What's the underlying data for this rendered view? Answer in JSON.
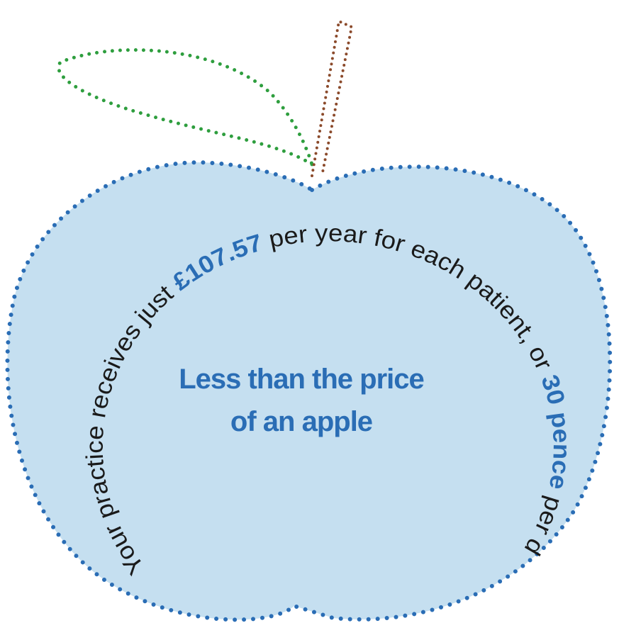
{
  "ring_text": {
    "intro": "Your practice receives just",
    "amount": "£107.57",
    "middle": "per year for each patient, or",
    "daily": "30 pence",
    "outro": "per day"
  },
  "center_text": {
    "lines": [
      "Less than the price",
      "of an apple"
    ]
  }
}
